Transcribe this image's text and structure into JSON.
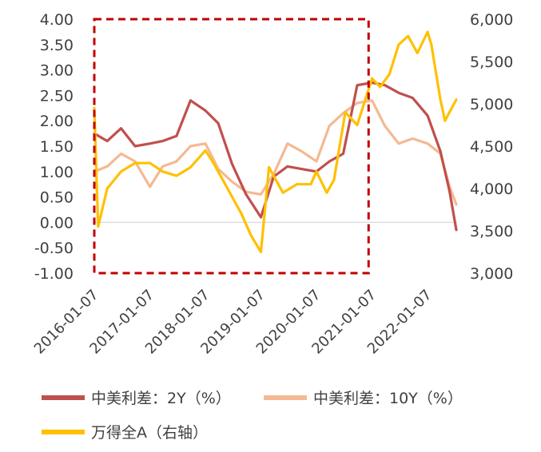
{
  "chart_data": {
    "type": "line",
    "x_ticks": [
      "2016-01-07",
      "2017-01-07",
      "2018-01-07",
      "2019-01-07",
      "2020-01-07",
      "2021-01-07",
      "2022-01-07"
    ],
    "y_left": {
      "ticks": [
        "4.00",
        "3.50",
        "3.00",
        "2.50",
        "2.00",
        "1.50",
        "1.00",
        "0.50",
        "0.00",
        "-0.50",
        "-1.00"
      ],
      "range": [
        -1.0,
        4.0
      ]
    },
    "y_right": {
      "ticks": [
        "6,000",
        "5,500",
        "5,000",
        "4,500",
        "4,000",
        "3,500",
        "3,000"
      ],
      "range": [
        3000,
        6000
      ]
    },
    "series": [
      {
        "name": "中美利差：2Y（%）",
        "axis": "left",
        "color": "#c0504d",
        "points": [
          [
            "2016-01-07",
            1.75
          ],
          [
            "2016-04-01",
            1.6
          ],
          [
            "2016-07-01",
            1.85
          ],
          [
            "2016-10-01",
            1.5
          ],
          [
            "2017-01-07",
            1.55
          ],
          [
            "2017-04-01",
            1.6
          ],
          [
            "2017-07-01",
            1.7
          ],
          [
            "2017-10-01",
            2.4
          ],
          [
            "2018-01-07",
            2.2
          ],
          [
            "2018-04-01",
            1.95
          ],
          [
            "2018-07-01",
            1.15
          ],
          [
            "2018-10-01",
            0.55
          ],
          [
            "2019-01-07",
            0.1
          ],
          [
            "2019-04-01",
            0.9
          ],
          [
            "2019-07-01",
            1.1
          ],
          [
            "2019-10-01",
            1.05
          ],
          [
            "2020-01-07",
            1.0
          ],
          [
            "2020-04-01",
            1.2
          ],
          [
            "2020-07-01",
            1.35
          ],
          [
            "2020-10-01",
            2.7
          ],
          [
            "2021-01-07",
            2.75
          ],
          [
            "2021-04-01",
            2.7
          ],
          [
            "2021-07-01",
            2.55
          ],
          [
            "2021-10-01",
            2.45
          ],
          [
            "2022-01-07",
            2.1
          ],
          [
            "2022-04-01",
            1.4
          ],
          [
            "2022-06-01",
            0.6
          ],
          [
            "2022-07-15",
            -0.15
          ]
        ]
      },
      {
        "name": "中美利差：10Y（%）",
        "axis": "left",
        "color": "#f4b993",
        "points": [
          [
            "2016-01-07",
            1.0
          ],
          [
            "2016-04-01",
            1.1
          ],
          [
            "2016-07-01",
            1.35
          ],
          [
            "2016-10-01",
            1.2
          ],
          [
            "2017-01-07",
            0.7
          ],
          [
            "2017-04-01",
            1.1
          ],
          [
            "2017-07-01",
            1.2
          ],
          [
            "2017-10-01",
            1.5
          ],
          [
            "2018-01-07",
            1.55
          ],
          [
            "2018-04-01",
            1.05
          ],
          [
            "2018-07-01",
            0.8
          ],
          [
            "2018-10-01",
            0.6
          ],
          [
            "2019-01-07",
            0.55
          ],
          [
            "2019-04-01",
            0.95
          ],
          [
            "2019-07-01",
            1.55
          ],
          [
            "2019-10-01",
            1.4
          ],
          [
            "2020-01-07",
            1.2
          ],
          [
            "2020-04-01",
            1.9
          ],
          [
            "2020-07-01",
            2.15
          ],
          [
            "2020-10-01",
            2.35
          ],
          [
            "2021-01-07",
            2.4
          ],
          [
            "2021-04-01",
            1.9
          ],
          [
            "2021-07-01",
            1.55
          ],
          [
            "2021-10-01",
            1.65
          ],
          [
            "2022-01-07",
            1.55
          ],
          [
            "2022-04-01",
            1.35
          ],
          [
            "2022-06-01",
            0.7
          ],
          [
            "2022-07-15",
            0.35
          ]
        ]
      },
      {
        "name": "万得全A（右轴）",
        "axis": "right",
        "color": "#ffc000",
        "points": [
          [
            "2016-01-07",
            4950
          ],
          [
            "2016-02-01",
            3550
          ],
          [
            "2016-04-01",
            4000
          ],
          [
            "2016-07-01",
            4200
          ],
          [
            "2016-10-01",
            4300
          ],
          [
            "2017-01-07",
            4300
          ],
          [
            "2017-04-01",
            4200
          ],
          [
            "2017-07-01",
            4150
          ],
          [
            "2017-10-01",
            4250
          ],
          [
            "2018-01-07",
            4450
          ],
          [
            "2018-03-01",
            4300
          ],
          [
            "2018-06-01",
            4000
          ],
          [
            "2018-09-01",
            3700
          ],
          [
            "2018-11-01",
            3450
          ],
          [
            "2019-01-07",
            3250
          ],
          [
            "2019-03-01",
            4250
          ],
          [
            "2019-06-01",
            3950
          ],
          [
            "2019-09-01",
            4050
          ],
          [
            "2019-12-01",
            4050
          ],
          [
            "2020-01-07",
            4200
          ],
          [
            "2020-03-15",
            3950
          ],
          [
            "2020-05-01",
            4100
          ],
          [
            "2020-07-15",
            4900
          ],
          [
            "2020-10-01",
            4750
          ],
          [
            "2021-01-07",
            5300
          ],
          [
            "2021-03-01",
            5200
          ],
          [
            "2021-05-01",
            5350
          ],
          [
            "2021-07-01",
            5700
          ],
          [
            "2021-09-01",
            5800
          ],
          [
            "2021-11-01",
            5600
          ],
          [
            "2022-01-07",
            5850
          ],
          [
            "2022-02-01",
            5700
          ],
          [
            "2022-04-01",
            5050
          ],
          [
            "2022-05-01",
            4800
          ],
          [
            "2022-06-15",
            4950
          ],
          [
            "2022-07-15",
            5050
          ]
        ]
      }
    ],
    "annotations": [
      {
        "type": "dashed-rectangle",
        "color": "#c00000",
        "x_from": "2016-01-07",
        "x_to": "2020-12-15",
        "y_from": -1.0,
        "y_to": 4.0
      }
    ],
    "zero_line": true,
    "grid": false,
    "legend_position": "bottom"
  },
  "legend": [
    {
      "label": "中美利差：2Y（%）",
      "color": "#c0504d"
    },
    {
      "label": "中美利差：10Y（%）",
      "color": "#f4b993"
    },
    {
      "label": "万得全A（右轴）",
      "color": "#ffc000"
    }
  ]
}
